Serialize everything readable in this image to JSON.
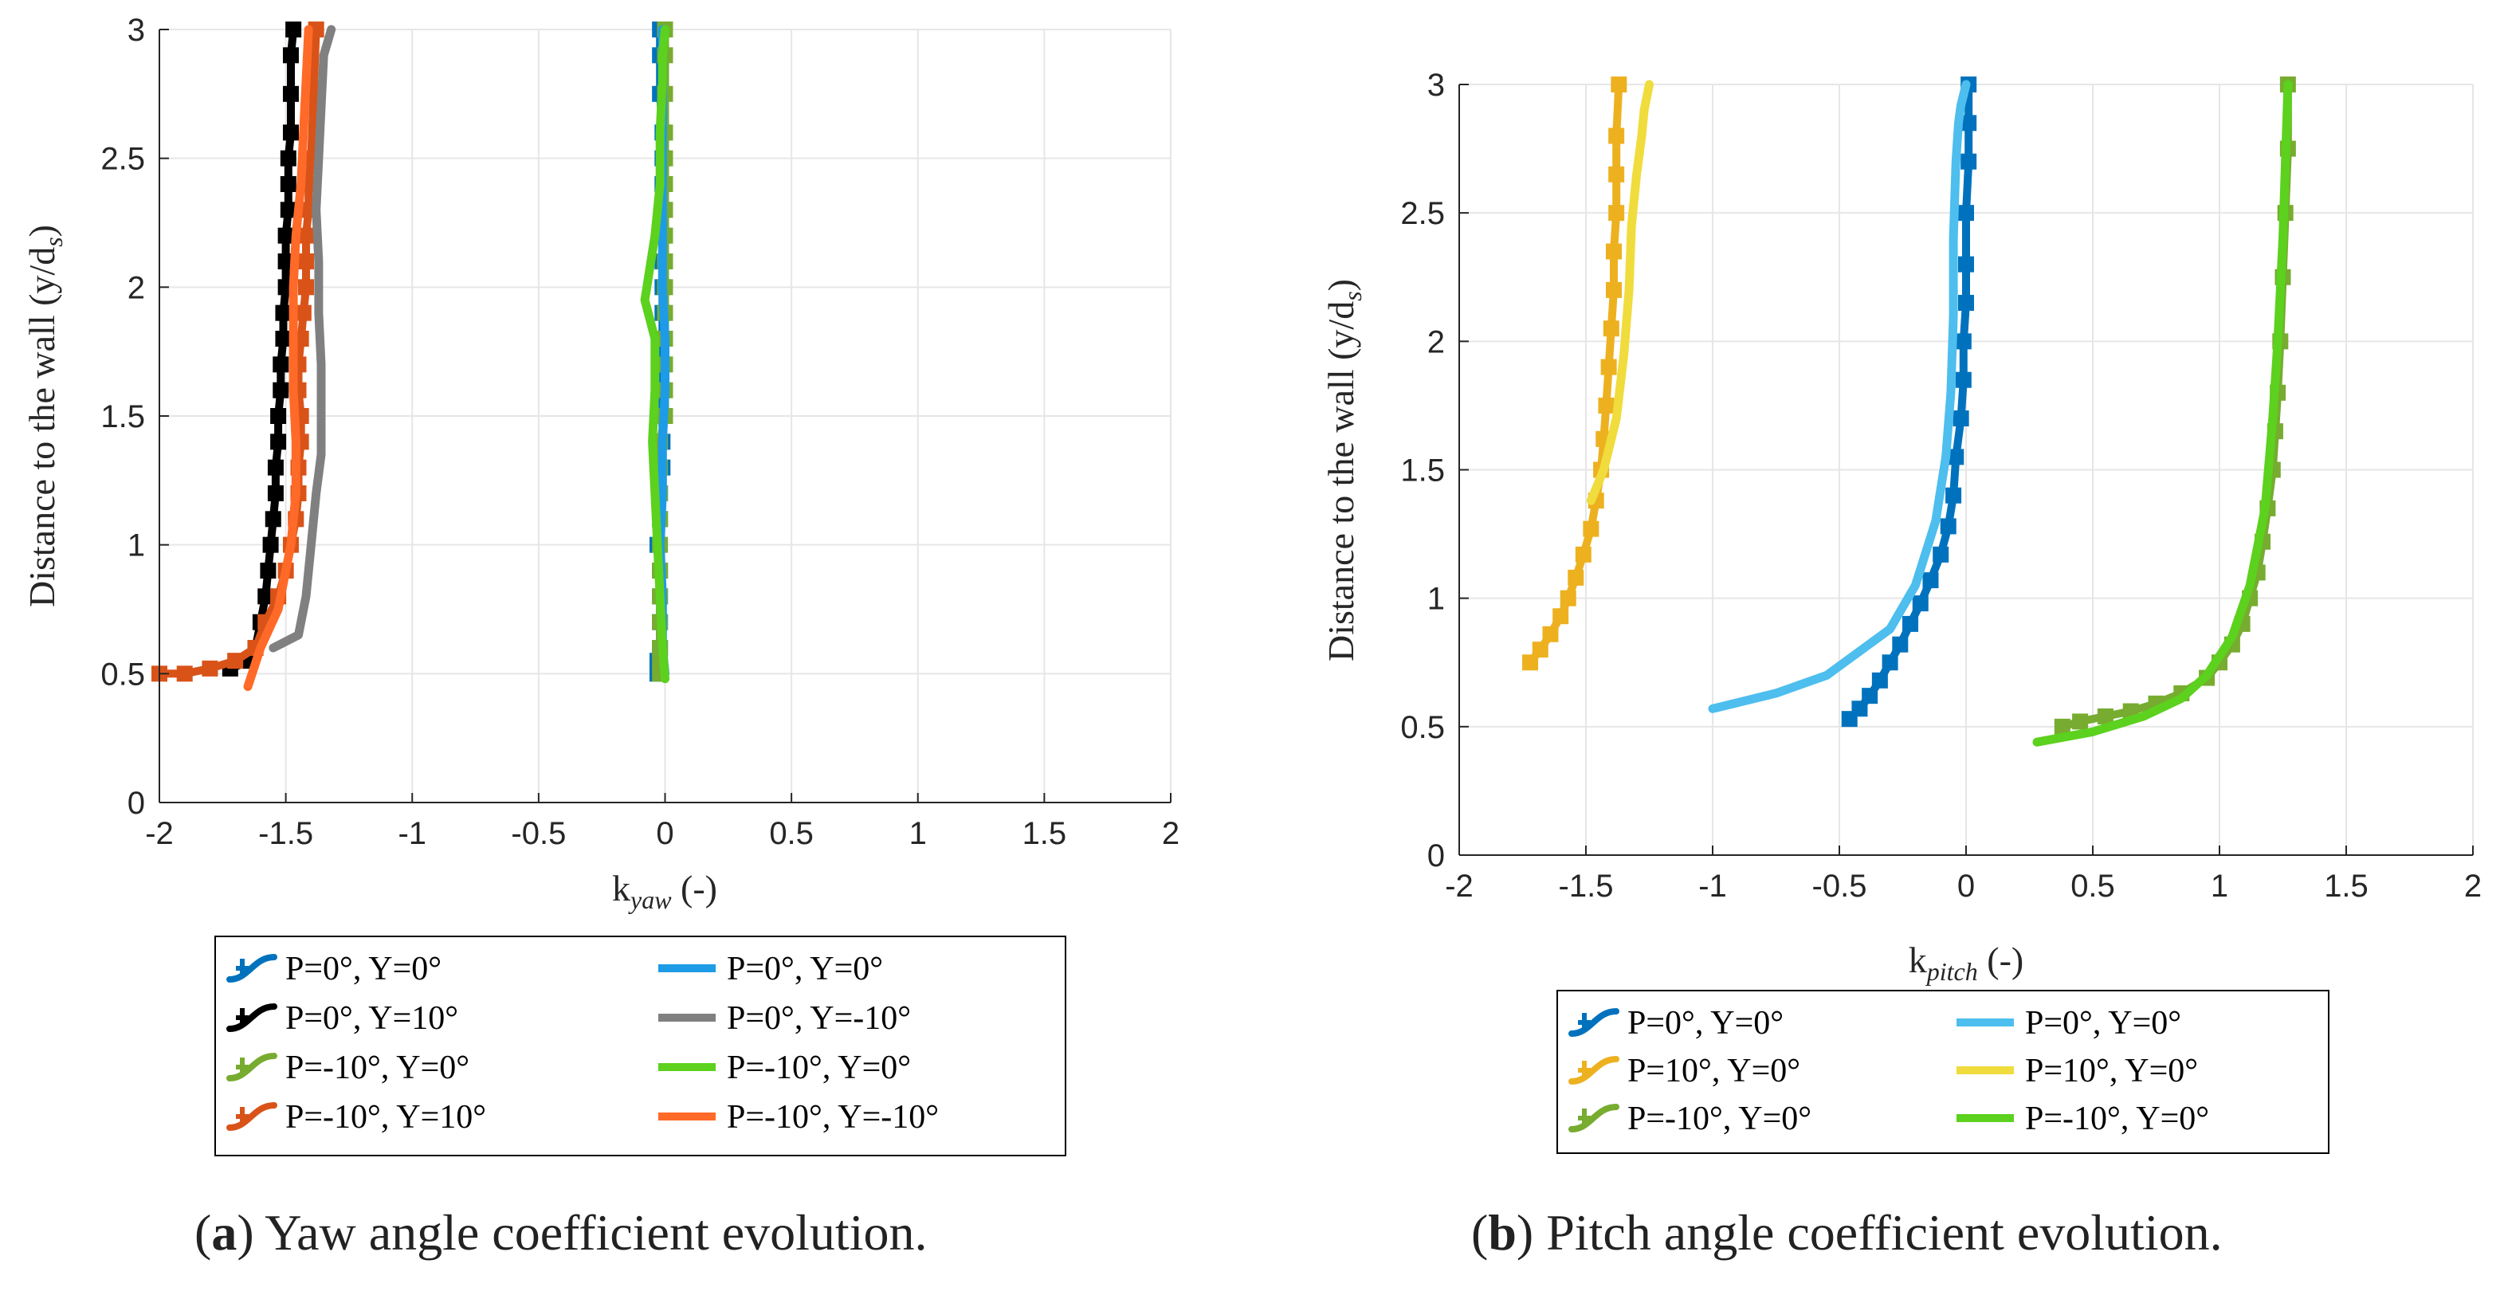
{
  "figure_captions": [
    {
      "letter": "a",
      "open": "(",
      "close": ")",
      "text": " Yaw angle coefficient evolution."
    },
    {
      "letter": "b",
      "open": "(",
      "close": ")",
      "text": " Pitch angle coefficient evolution."
    }
  ],
  "chart_data": [
    {
      "type": "line",
      "id": "yaw",
      "title": "",
      "xlabel": {
        "base": "k",
        "sub": "yaw",
        "suffix": " (-)"
      },
      "ylabel": {
        "base": "Distance to the wall (y/d",
        "sub": "s",
        "suffix": ")"
      },
      "xlim": [
        -2,
        2
      ],
      "ylim": [
        0,
        3
      ],
      "xticks": [
        "-2",
        "-1.5",
        "-1",
        "-0.5",
        "0",
        "0.5",
        "1",
        "1.5",
        "2"
      ],
      "yticks": [
        "0",
        "0.5",
        "1",
        "1.5",
        "2",
        "2.5",
        "3"
      ],
      "grid": true,
      "legend_position": "below",
      "legend_columns": 2,
      "series": [
        {
          "name": "P=0°, Y=0°",
          "color": "#0072BD",
          "marker": true,
          "x": [
            -0.03,
            -0.03,
            -0.02,
            -0.02,
            -0.02,
            -0.02,
            -0.03,
            -0.02,
            -0.02,
            -0.01,
            -0.01,
            -0.01,
            -0.01,
            -0.01,
            -0.01,
            -0.01,
            -0.01,
            -0.01,
            -0.01,
            -0.01,
            -0.01,
            -0.01,
            -0.01,
            -0.02,
            -0.02,
            -0.02
          ],
          "y": [
            0.5,
            0.55,
            0.6,
            0.7,
            0.8,
            0.9,
            1.0,
            1.1,
            1.2,
            1.3,
            1.4,
            1.5,
            1.6,
            1.7,
            1.8,
            1.9,
            2.0,
            2.1,
            2.2,
            2.3,
            2.4,
            2.5,
            2.6,
            2.75,
            2.9,
            3.0
          ]
        },
        {
          "name": "P=0°, Y=10°",
          "color": "#000000",
          "marker": true,
          "x": [
            -1.72,
            -1.64,
            -1.62,
            -1.6,
            -1.58,
            -1.57,
            -1.56,
            -1.55,
            -1.54,
            -1.54,
            -1.53,
            -1.53,
            -1.52,
            -1.52,
            -1.51,
            -1.51,
            -1.5,
            -1.5,
            -1.5,
            -1.49,
            -1.49,
            -1.49,
            -1.48,
            -1.48,
            -1.48,
            -1.47
          ],
          "y": [
            0.52,
            0.55,
            0.6,
            0.7,
            0.8,
            0.9,
            1.0,
            1.1,
            1.2,
            1.3,
            1.4,
            1.5,
            1.6,
            1.7,
            1.8,
            1.9,
            2.0,
            2.1,
            2.2,
            2.3,
            2.4,
            2.5,
            2.6,
            2.75,
            2.9,
            3.0
          ]
        },
        {
          "name": "P=-10°, Y=0°",
          "color": "#77AC30",
          "marker": true,
          "x": [
            -0.02,
            -0.02,
            -0.02,
            -0.02,
            -0.02,
            -0.02,
            -0.02,
            -0.02,
            -0.02,
            -0.02,
            -0.02,
            0.0,
            0.0,
            0.0,
            0.0,
            0.0,
            0.0,
            0.0,
            0.0,
            0.0,
            0.0,
            0.0,
            0.0,
            0.0,
            0.0,
            0.0
          ],
          "y": [
            0.5,
            0.55,
            0.6,
            0.7,
            0.8,
            0.9,
            1.0,
            1.1,
            1.2,
            1.3,
            1.4,
            1.5,
            1.6,
            1.7,
            1.8,
            1.9,
            2.0,
            2.1,
            2.2,
            2.3,
            2.4,
            2.5,
            2.6,
            2.75,
            2.9,
            3.0
          ]
        },
        {
          "name": "P=-10°, Y=10°",
          "color": "#D95319",
          "marker": true,
          "x": [
            -2.0,
            -1.9,
            -1.8,
            -1.7,
            -1.62,
            -1.58,
            -1.53,
            -1.5,
            -1.48,
            -1.46,
            -1.45,
            -1.45,
            -1.44,
            -1.44,
            -1.45,
            -1.45,
            -1.44,
            -1.43,
            -1.42,
            -1.42,
            -1.42,
            -1.41,
            -1.41,
            -1.4,
            -1.39,
            -1.38
          ],
          "y": [
            0.5,
            0.5,
            0.52,
            0.55,
            0.6,
            0.7,
            0.8,
            0.9,
            1.0,
            1.1,
            1.2,
            1.3,
            1.4,
            1.5,
            1.6,
            1.7,
            1.8,
            1.9,
            2.0,
            2.1,
            2.2,
            2.3,
            2.4,
            2.5,
            2.75,
            3.0
          ]
        },
        {
          "name": "P=0°, Y=0°",
          "color": "#1E9BE6",
          "marker": false,
          "x": [
            0.0,
            -0.01,
            -0.01,
            -0.02,
            -0.01,
            -0.01,
            0.0,
            0.0,
            -0.01,
            -0.01,
            -0.01,
            -0.01,
            -0.01,
            -0.01,
            -0.01
          ],
          "y": [
            0.5,
            0.6,
            0.8,
            1.0,
            1.2,
            1.4,
            1.6,
            1.8,
            2.0,
            2.2,
            2.4,
            2.6,
            2.8,
            2.9,
            3.0
          ]
        },
        {
          "name": "P=0°, Y=-10°",
          "color": "#808080",
          "marker": false,
          "x": [
            -1.55,
            -1.45,
            -1.42,
            -1.4,
            -1.38,
            -1.36,
            -1.36,
            -1.36,
            -1.37,
            -1.37,
            -1.38,
            -1.37,
            -1.36,
            -1.35,
            -1.32
          ],
          "y": [
            0.6,
            0.65,
            0.8,
            1.0,
            1.2,
            1.35,
            1.5,
            1.7,
            1.9,
            2.1,
            2.3,
            2.5,
            2.7,
            2.9,
            3.0
          ]
        },
        {
          "name": "P=-10°, Y=0°",
          "color": "#5CD11E",
          "marker": false,
          "x": [
            0.0,
            -0.01,
            -0.02,
            -0.03,
            -0.04,
            -0.05,
            -0.04,
            -0.04,
            -0.08,
            -0.04,
            -0.02,
            -0.02,
            -0.01,
            -0.01,
            0.0
          ],
          "y": [
            0.48,
            0.6,
            0.8,
            1.0,
            1.2,
            1.4,
            1.6,
            1.8,
            1.95,
            2.2,
            2.4,
            2.6,
            2.8,
            2.9,
            3.0
          ]
        },
        {
          "name": "P=-10°, Y=-10°",
          "color": "#FF6A28",
          "marker": false,
          "x": [
            -1.65,
            -1.6,
            -1.53,
            -1.48,
            -1.46,
            -1.46,
            -1.47,
            -1.47,
            -1.47,
            -1.46,
            -1.44,
            -1.43,
            -1.42,
            -1.41
          ],
          "y": [
            0.45,
            0.6,
            0.75,
            1.0,
            1.2,
            1.4,
            1.6,
            1.8,
            2.0,
            2.2,
            2.4,
            2.6,
            2.8,
            3.0
          ]
        }
      ]
    },
    {
      "type": "line",
      "id": "pitch",
      "title": "",
      "xlabel": {
        "base": "k",
        "sub": "pitch",
        "suffix": " (-)"
      },
      "ylabel": {
        "base": "Distance to the wall (y/d",
        "sub": "s",
        "suffix": ")"
      },
      "xlim": [
        -2,
        2
      ],
      "ylim": [
        0,
        3
      ],
      "xticks": [
        "-2",
        "-1.5",
        "-1",
        "-0.5",
        "0",
        "0.5",
        "1",
        "1.5",
        "2"
      ],
      "yticks": [
        "0",
        "0.5",
        "1",
        "1.5",
        "2",
        "2.5",
        "3"
      ],
      "grid": true,
      "legend_position": "below",
      "legend_columns": 2,
      "series": [
        {
          "name": "P=0°, Y=0°",
          "color": "#0072BD",
          "marker": true,
          "x": [
            -0.46,
            -0.42,
            -0.38,
            -0.34,
            -0.3,
            -0.26,
            -0.22,
            -0.18,
            -0.14,
            -0.1,
            -0.07,
            -0.05,
            -0.04,
            -0.02,
            -0.01,
            -0.01,
            0.0,
            0.0,
            0.0,
            0.01,
            0.01,
            0.01
          ],
          "y": [
            0.53,
            0.57,
            0.62,
            0.68,
            0.75,
            0.82,
            0.9,
            0.98,
            1.07,
            1.17,
            1.28,
            1.4,
            1.55,
            1.7,
            1.85,
            2.0,
            2.15,
            2.3,
            2.5,
            2.7,
            2.85,
            3.0
          ]
        },
        {
          "name": "P=10°, Y=0°",
          "color": "#EDB120",
          "marker": true,
          "x": [
            -1.72,
            -1.68,
            -1.64,
            -1.6,
            -1.57,
            -1.54,
            -1.51,
            -1.48,
            -1.46,
            -1.44,
            -1.43,
            -1.42,
            -1.41,
            -1.4,
            -1.39,
            -1.39,
            -1.38,
            -1.38,
            -1.38,
            -1.37
          ],
          "y": [
            0.75,
            0.8,
            0.86,
            0.93,
            1.0,
            1.08,
            1.17,
            1.27,
            1.38,
            1.5,
            1.62,
            1.75,
            1.9,
            2.05,
            2.2,
            2.35,
            2.5,
            2.65,
            2.8,
            3.0
          ]
        },
        {
          "name": "P=-10°, Y=0°",
          "color": "#77AC30",
          "marker": true,
          "x": [
            0.38,
            0.45,
            0.55,
            0.65,
            0.75,
            0.85,
            0.95,
            1.0,
            1.05,
            1.09,
            1.12,
            1.15,
            1.17,
            1.19,
            1.21,
            1.22,
            1.23,
            1.24,
            1.25,
            1.26,
            1.27,
            1.27
          ],
          "y": [
            0.5,
            0.52,
            0.54,
            0.56,
            0.59,
            0.63,
            0.69,
            0.75,
            0.82,
            0.9,
            1.0,
            1.1,
            1.22,
            1.35,
            1.5,
            1.65,
            1.8,
            2.0,
            2.25,
            2.5,
            2.75,
            3.0
          ]
        },
        {
          "name": "P=0°, Y=0°",
          "color": "#4DBEEE",
          "marker": false,
          "x": [
            -1.0,
            -0.75,
            -0.55,
            -0.3,
            -0.2,
            -0.12,
            -0.08,
            -0.06,
            -0.05,
            -0.05,
            -0.04,
            -0.03,
            -0.02,
            0.0
          ],
          "y": [
            0.57,
            0.63,
            0.7,
            0.88,
            1.05,
            1.3,
            1.55,
            1.8,
            2.1,
            2.4,
            2.7,
            2.85,
            2.92,
            3.0
          ]
        },
        {
          "name": "P=10°, Y=0°",
          "color": "#F0DC3C",
          "marker": false,
          "x": [
            -1.48,
            -1.43,
            -1.38,
            -1.35,
            -1.33,
            -1.32,
            -1.3,
            -1.28,
            -1.27,
            -1.25
          ],
          "y": [
            1.38,
            1.5,
            1.7,
            1.95,
            2.2,
            2.45,
            2.65,
            2.8,
            2.9,
            3.0
          ]
        },
        {
          "name": "P=-10°, Y=0°",
          "color": "#5CD11E",
          "marker": false,
          "x": [
            0.28,
            0.5,
            0.7,
            0.85,
            0.95,
            1.05,
            1.12,
            1.18,
            1.21,
            1.23,
            1.25,
            1.26,
            1.27
          ],
          "y": [
            0.44,
            0.48,
            0.54,
            0.61,
            0.7,
            0.85,
            1.05,
            1.35,
            1.7,
            2.0,
            2.4,
            2.7,
            3.0
          ]
        }
      ]
    }
  ]
}
